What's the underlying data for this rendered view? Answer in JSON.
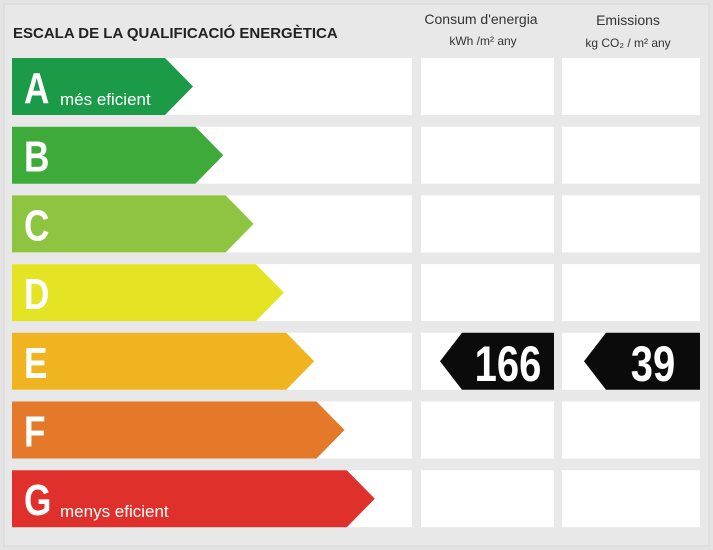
{
  "title": "ESCALA DE LA QUALIFICACIÓ ENERGÈTICA",
  "columns": [
    {
      "title": "Consum d'energia",
      "unit": "kWh /m² any"
    },
    {
      "title": "Emissions",
      "unit": "kg CO₂ / m² any"
    }
  ],
  "rows": [
    {
      "letter": "A",
      "label": "més eficient",
      "color": "#1b9a48"
    },
    {
      "letter": "B",
      "color": "#3daa3a"
    },
    {
      "letter": "C",
      "color": "#8dc540"
    },
    {
      "letter": "D",
      "color": "#e4e424"
    },
    {
      "letter": "E",
      "color": "#efb41f",
      "consumption": 166,
      "emissions": 39
    },
    {
      "letter": "F",
      "color": "#e4792a"
    },
    {
      "letter": "G",
      "label": "menys eficient",
      "color": "#e0302c"
    }
  ]
}
